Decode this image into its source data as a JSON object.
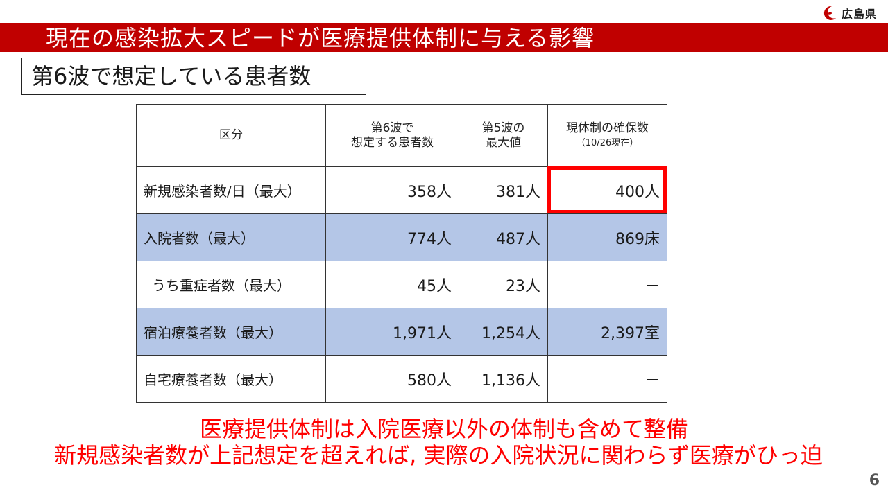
{
  "logo": {
    "text": "広島県"
  },
  "title": "現在の感染拡大スピードが医療提供体制に与える影響",
  "subtitle": "第6波で想定している患者数",
  "table": {
    "headers": [
      {
        "line1": "区分",
        "line2": ""
      },
      {
        "line1": "第6波で",
        "line2": "想定する患者数"
      },
      {
        "line1": "第5波の",
        "line2": "最大値"
      },
      {
        "line1": "現体制の確保数",
        "line2": "（10/26現在）"
      }
    ],
    "rows": [
      {
        "category": "新規感染者数/日（最大）",
        "wave6": "358人",
        "wave5": "381人",
        "capacity": "400人"
      },
      {
        "category": "入院者数（最大）",
        "wave6": "774人",
        "wave5": "487人",
        "capacity": "869床"
      },
      {
        "category": "うち重症者数（最大）",
        "wave6": "45人",
        "wave5": "23人",
        "capacity": "－"
      },
      {
        "category": "宿泊療養者数（最大）",
        "wave6": "1,971人",
        "wave5": "1,254人",
        "capacity": "2,397室"
      },
      {
        "category": "自宅療養者数（最大）",
        "wave6": "580人",
        "wave5": "1,136人",
        "capacity": "－"
      }
    ]
  },
  "notes": {
    "line1": "医療提供体制は入院医療以外の体制も含めて整備",
    "line2": "新規感染者数が上記想定を超えれば, 実際の入院状況に関わらず医療がひっ迫"
  },
  "page_number": "6",
  "colors": {
    "title_bar": "#c00000",
    "highlight": "#ff0000",
    "row_blue": "#b4c6e7",
    "note_text": "#ff0000"
  }
}
